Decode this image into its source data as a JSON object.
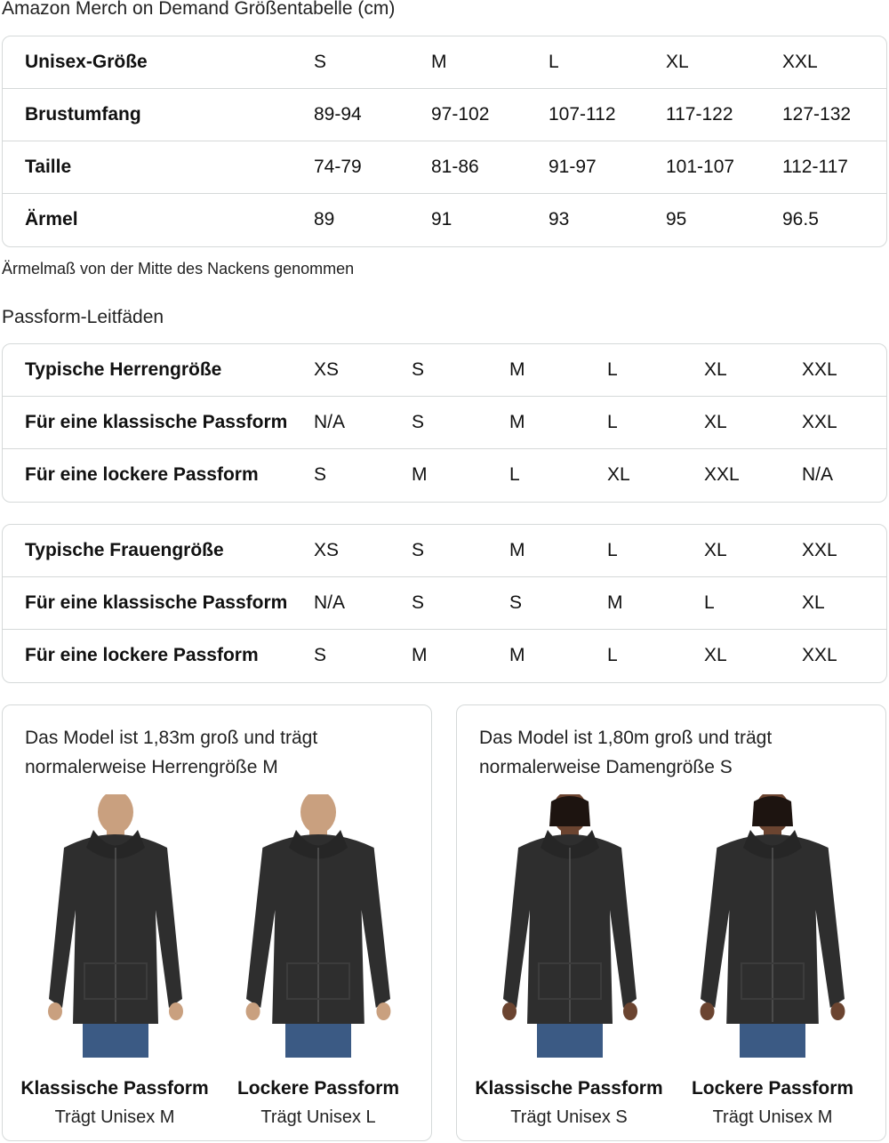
{
  "title": "Amazon Merch on Demand Größentabelle (cm)",
  "unisex_table": {
    "rows": [
      [
        "Unisex-Größe",
        "S",
        "M",
        "L",
        "XL",
        "XXL"
      ],
      [
        "Brustumfang",
        "89-94",
        "97-102",
        "107-112",
        "117-122",
        "127-132"
      ],
      [
        "Taille",
        "74-79",
        "81-86",
        "91-97",
        "101-107",
        "112-117"
      ],
      [
        "Ärmel",
        "89",
        "91",
        "93",
        "95",
        "96.5"
      ]
    ]
  },
  "sleeve_note": "Ärmelmaß von der Mitte des Nackens genommen",
  "fit_guides_title": "Passform-Leitfäden",
  "men_table": {
    "rows": [
      [
        "Typische Herrengröße",
        "XS",
        "S",
        "M",
        "L",
        "XL",
        "XXL"
      ],
      [
        "Für eine klassische Passform",
        "N/A",
        "S",
        "M",
        "L",
        "XL",
        "XXL"
      ],
      [
        "Für eine lockere Passform",
        "S",
        "M",
        "L",
        "XL",
        "XXL",
        "N/A"
      ]
    ]
  },
  "women_table": {
    "rows": [
      [
        "Typische Frauengröße",
        "XS",
        "S",
        "M",
        "L",
        "XL",
        "XXL"
      ],
      [
        "Für eine klassische Passform",
        "N/A",
        "S",
        "S",
        "M",
        "L",
        "XL"
      ],
      [
        "Für eine lockere Passform",
        "S",
        "M",
        "M",
        "L",
        "XL",
        "XXL"
      ]
    ]
  },
  "cards": [
    {
      "caption_line1": "Das Model ist 1,83m groß und trägt",
      "caption_line2": "normalerweise Herrengröße M",
      "fits": [
        {
          "title": "Klassische Passform",
          "wears": "Trägt Unisex M"
        },
        {
          "title": "Lockere Passform",
          "wears": "Trägt Unisex L"
        }
      ],
      "skin": "#c9a07f"
    },
    {
      "caption_line1": "Das Model ist 1,80m groß und trägt",
      "caption_line2": "normalerweise Damengröße S",
      "fits": [
        {
          "title": "Klassische Passform",
          "wears": "Trägt Unisex S"
        },
        {
          "title": "Lockere Passform",
          "wears": "Trägt Unisex M"
        }
      ],
      "skin": "#6b4430"
    }
  ],
  "colors": {
    "border": "#d5d9d9",
    "hoodie": "#2e2e2e",
    "jeans": "#3b5a84"
  }
}
